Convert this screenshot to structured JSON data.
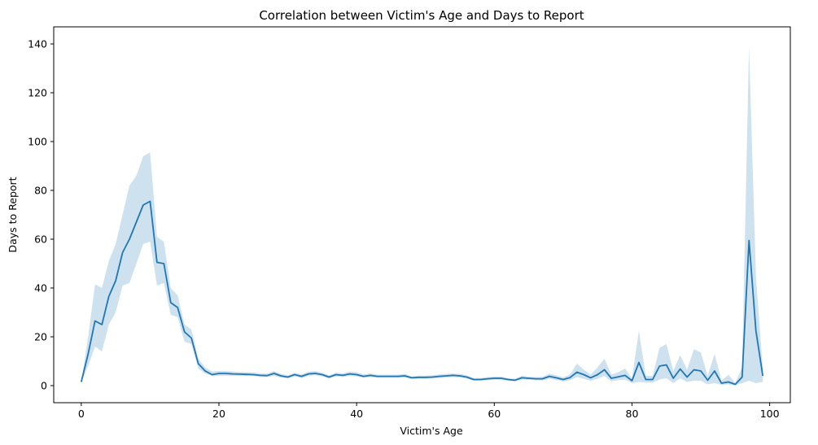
{
  "chart_data": {
    "type": "line",
    "title": "Correlation between Victim's Age and Days to Report",
    "xlabel": "Victim's Age",
    "ylabel": "Days to Report",
    "xlim": [
      -4,
      103
    ],
    "ylim": [
      -7,
      147
    ],
    "xticks": [
      0,
      20,
      40,
      60,
      80,
      100
    ],
    "yticks": [
      0,
      20,
      40,
      60,
      80,
      100,
      120,
      140
    ],
    "grid": false,
    "line_color": "#1f77b4",
    "band_color": "#1f77b4",
    "series": [
      {
        "x": [
          0,
          1,
          2,
          3,
          4,
          5,
          6,
          7,
          8,
          9,
          10,
          11,
          12,
          13,
          14,
          15,
          16,
          17,
          18,
          19,
          20,
          21,
          22,
          23,
          24,
          25,
          26,
          27,
          28,
          29,
          30,
          31,
          32,
          33,
          34,
          35,
          36,
          37,
          38,
          39,
          40,
          41,
          42,
          43,
          44,
          45,
          46,
          47,
          48,
          49,
          50,
          51,
          52,
          53,
          54,
          55,
          56,
          57,
          58,
          59,
          60,
          61,
          62,
          63,
          64,
          65,
          66,
          67,
          68,
          69,
          70,
          71,
          72,
          73,
          74,
          75,
          76,
          77,
          78,
          79,
          80,
          81,
          82,
          83,
          84,
          85,
          86,
          87,
          88,
          89,
          90,
          91,
          92,
          93,
          94,
          95,
          96,
          97,
          98,
          99
        ],
        "y": [
          1.5,
          13,
          26.5,
          25,
          36.5,
          43,
          54.5,
          60,
          67,
          74,
          75.5,
          50.5,
          50,
          34,
          32,
          22,
          19.5,
          9,
          6,
          4.5,
          5,
          5,
          4.8,
          4.7,
          4.6,
          4.5,
          4.2,
          4.1,
          5,
          4,
          3.5,
          4.5,
          3.8,
          4.8,
          5,
          4.5,
          3.5,
          4.5,
          4.2,
          4.8,
          4.5,
          3.8,
          4.2,
          3.8,
          3.8,
          3.8,
          3.8,
          4,
          3.2,
          3.4,
          3.4,
          3.5,
          3.8,
          4,
          4.2,
          4,
          3.5,
          2.5,
          2.5,
          2.8,
          3,
          3,
          2.5,
          2.2,
          3.2,
          3,
          2.8,
          2.8,
          3.8,
          3.2,
          2.5,
          3.3,
          5.5,
          4.5,
          3.2,
          4.5,
          6.5,
          3,
          3.6,
          4.2,
          2,
          9.5,
          2.5,
          2.5,
          8,
          8.5,
          3,
          6.8,
          3.5,
          6.5,
          6,
          2.2,
          6,
          1,
          1.5,
          0.5,
          3.5,
          59.5,
          22.5,
          4
        ],
        "ci_low": [
          1.5,
          8,
          16,
          14,
          25,
          30,
          41,
          42,
          50,
          58,
          59,
          41,
          42,
          29,
          28,
          18,
          17,
          7,
          5,
          4,
          4,
          4,
          4,
          4,
          4,
          4,
          3.5,
          3.5,
          4,
          3.3,
          3,
          3.8,
          3.1,
          4,
          4.2,
          3.8,
          2.9,
          3.8,
          3.5,
          4,
          3.8,
          3.2,
          3.5,
          3.2,
          3.2,
          3.2,
          3.2,
          3.3,
          2.7,
          2.8,
          2.8,
          2.9,
          3.1,
          3.3,
          3.5,
          3.3,
          2.9,
          2,
          2,
          2.2,
          2.4,
          2.4,
          2,
          1.7,
          2.5,
          2.4,
          2.2,
          2.1,
          2.8,
          2.3,
          1.7,
          2.2,
          3.5,
          2.8,
          2,
          2.8,
          4,
          1.8,
          2.2,
          2.5,
          1,
          1.5,
          1.2,
          1.2,
          2.5,
          3,
          1,
          3,
          1.5,
          2,
          2,
          0.5,
          1,
          0.3,
          0.5,
          0.2,
          1,
          2,
          1,
          1.5
        ],
        "ci_high": [
          1.5,
          20,
          41.5,
          40,
          51,
          58,
          70,
          82,
          86,
          94,
          95.5,
          61,
          59,
          40,
          37,
          25,
          23,
          11,
          7.5,
          5.8,
          6,
          6,
          5.8,
          5.6,
          5.5,
          5.4,
          5,
          4.9,
          6,
          4.8,
          4.2,
          5.3,
          4.6,
          5.7,
          6,
          5.3,
          4.2,
          5.3,
          5,
          5.8,
          5.5,
          4.5,
          5,
          4.5,
          4.5,
          4.5,
          4.5,
          4.8,
          3.8,
          4.1,
          4.1,
          4.2,
          4.6,
          4.8,
          5,
          4.8,
          4.2,
          3.1,
          3.1,
          3.5,
          3.7,
          3.7,
          3.1,
          2.8,
          4,
          3.7,
          3.5,
          3.6,
          4.9,
          4.2,
          3.4,
          4.6,
          9,
          6.6,
          4.5,
          7.5,
          11,
          4.5,
          5.5,
          7,
          3,
          22.5,
          4,
          4,
          15.5,
          17,
          6,
          12.5,
          6.5,
          15,
          13.5,
          4,
          13,
          2,
          4.5,
          1,
          7.5,
          139,
          45,
          7
        ]
      }
    ]
  }
}
